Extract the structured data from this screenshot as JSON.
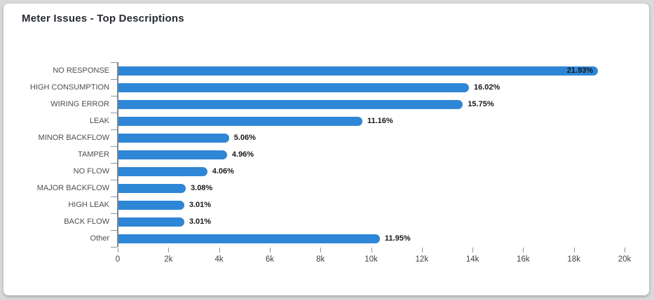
{
  "card": {
    "title": "Meter Issues - Top Descriptions"
  },
  "chart_data": {
    "type": "bar",
    "orientation": "horizontal",
    "title": "Meter Issues - Top Descriptions",
    "categories": [
      "NO RESPONSE",
      "HIGH CONSUMPTION",
      "WIRING ERROR",
      "LEAK",
      "MINOR BACKFLOW",
      "TAMPER",
      "NO FLOW",
      "MAJOR BACKFLOW",
      "HIGH LEAK",
      "BACK FLOW",
      "Other"
    ],
    "values": [
      18950,
      13850,
      13610,
      9640,
      4370,
      4290,
      3510,
      2660,
      2600,
      2600,
      10330
    ],
    "value_labels": [
      "21.93%",
      "16.02%",
      "15.75%",
      "11.16%",
      "5.06%",
      "4.96%",
      "4.06%",
      "3.08%",
      "3.01%",
      "3.01%",
      "11.95%"
    ],
    "label_placement": [
      "inside",
      "outside",
      "outside",
      "outside",
      "outside",
      "outside",
      "outside",
      "outside",
      "outside",
      "outside",
      "outside"
    ],
    "xlim": [
      0,
      20000
    ],
    "x_tick_labels": [
      "0",
      "2k",
      "4k",
      "6k",
      "8k",
      "10k",
      "12k",
      "14k",
      "16k",
      "18k",
      "20k"
    ],
    "grid": false,
    "legend": "none",
    "bar_color": "#2E86D6",
    "axis_color": "#7e858c",
    "tick_color": "#8f959b",
    "xlabel": "",
    "ylabel": ""
  }
}
